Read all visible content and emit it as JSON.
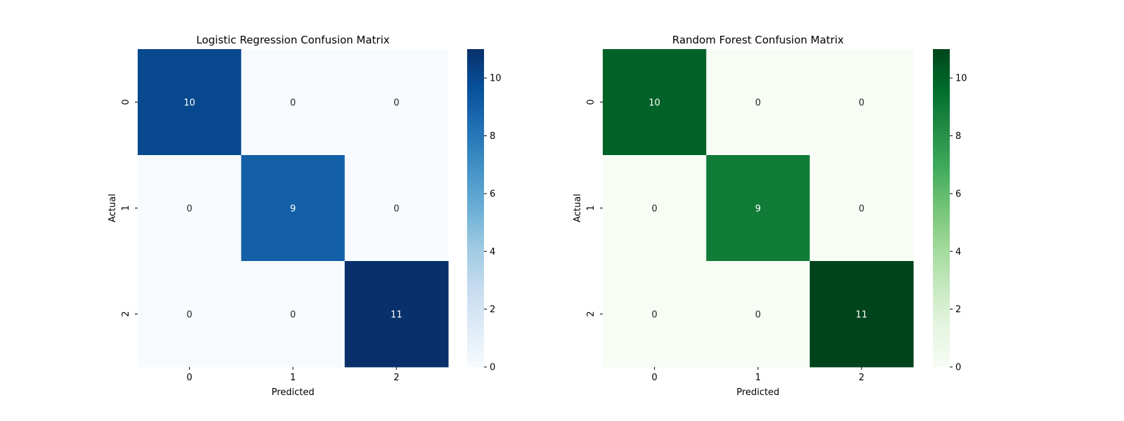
{
  "chart_data": [
    {
      "type": "heatmap",
      "title": "Logistic Regression Confusion Matrix",
      "xlabel": "Predicted",
      "ylabel": "Actual",
      "x_categories": [
        "0",
        "1",
        "2"
      ],
      "y_categories": [
        "0",
        "1",
        "2"
      ],
      "values": [
        [
          10,
          0,
          0
        ],
        [
          0,
          9,
          0
        ],
        [
          0,
          0,
          11
        ]
      ],
      "colormap": "Blues",
      "colorbar": {
        "range": [
          0,
          11
        ],
        "ticks": [
          0,
          2,
          4,
          6,
          8,
          10
        ]
      },
      "color_stops": [
        "#f7fbff",
        "#deebf7",
        "#c6dbef",
        "#9ecae1",
        "#6baed6",
        "#4292c6",
        "#2171b5",
        "#08519c",
        "#08306b"
      ],
      "annotations": true,
      "grid": false
    },
    {
      "type": "heatmap",
      "title": "Random Forest Confusion Matrix",
      "xlabel": "Predicted",
      "ylabel": "Actual",
      "x_categories": [
        "0",
        "1",
        "2"
      ],
      "y_categories": [
        "0",
        "1",
        "2"
      ],
      "values": [
        [
          10,
          0,
          0
        ],
        [
          0,
          9,
          0
        ],
        [
          0,
          0,
          11
        ]
      ],
      "colormap": "Greens",
      "colorbar": {
        "range": [
          0,
          11
        ],
        "ticks": [
          0,
          2,
          4,
          6,
          8,
          10
        ]
      },
      "color_stops": [
        "#f7fcf5",
        "#e5f5e0",
        "#c7e9c0",
        "#a1d99b",
        "#74c476",
        "#41ab5d",
        "#238b45",
        "#006d2c",
        "#00441b"
      ],
      "annotations": true,
      "grid": false
    }
  ]
}
